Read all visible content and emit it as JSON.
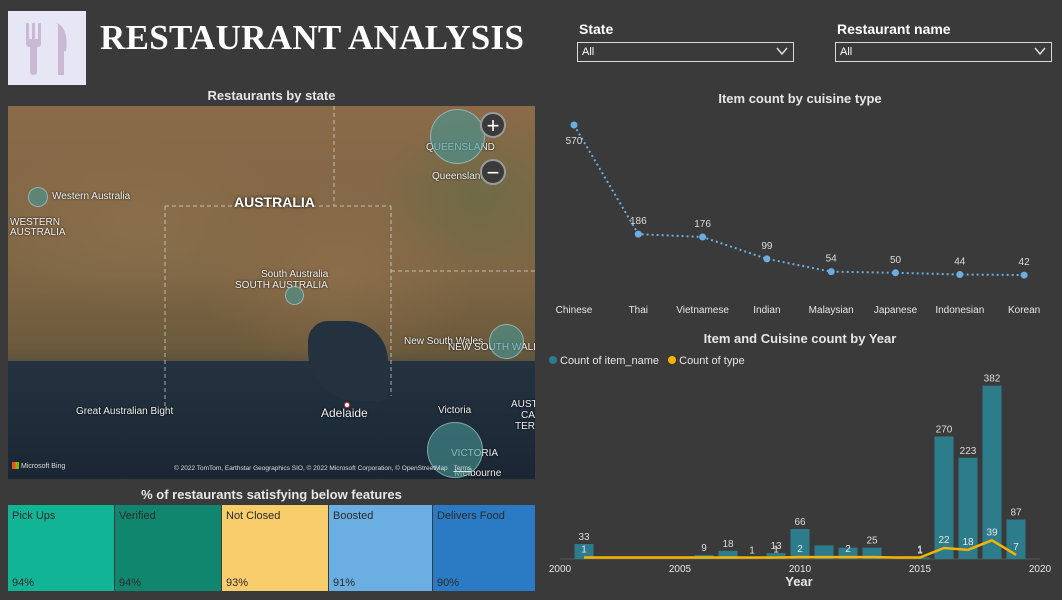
{
  "header": {
    "title": "RESTAURANT ANALYSIS",
    "logo_icon": "fork-knife-icon"
  },
  "filters": {
    "state": {
      "label": "State",
      "value": "All"
    },
    "restaurant": {
      "label": "Restaurant name",
      "value": "All"
    }
  },
  "map": {
    "title": "Restaurants by state",
    "country_label": "AUSTRALIA",
    "labels": {
      "western_australia": "Western Australia",
      "western_australia_caps": "WESTERN AUSTRALIA",
      "south_australia": "South Australia",
      "south_australia_caps": "SOUTH AUSTRALIA",
      "queensland": "Queensland",
      "queensland_caps": "QUEENSLAND",
      "nsw": "New South Wales",
      "nsw_caps": "NEW SOUTH WALES",
      "victoria": "Victoria",
      "victoria_caps": "VICTORIA",
      "adelaide": "Adelaide",
      "bight": "Great Australian Bight",
      "aust_fragment": "AUST",
      "ca_fragment": "CA",
      "ter_fragment": "TERI",
      "melbourne_fragment": "Melbourne"
    },
    "zoom_in": "+",
    "zoom_out": "−",
    "attribution": "© 2022 TomTom, Earthstar Geographics SIO, © 2022 Microsoft Corporation, © OpenStreetMap",
    "terms": "Terms",
    "bing": "Microsoft Bing"
  },
  "features": {
    "title": "% of restaurants satisfying below features",
    "tiles": [
      {
        "label": "Pick Ups",
        "value": "94%",
        "color": "#12b496"
      },
      {
        "label": "Verified",
        "value": "94%",
        "color": "#11866f"
      },
      {
        "label": "Not Closed",
        "value": "93%",
        "color": "#f9cd6b"
      },
      {
        "label": "Boosted",
        "value": "91%",
        "color": "#6aaee2"
      },
      {
        "label": "Delivers Food",
        "value": "90%",
        "color": "#2a7bc3"
      }
    ]
  },
  "chart_data": [
    {
      "type": "line",
      "title": "Item count by cuisine type",
      "categories": [
        "Chinese",
        "Thai",
        "Vietnamese",
        "Indian",
        "Malaysian",
        "Japanese",
        "Indonesian",
        "Korean"
      ],
      "values": [
        570,
        186,
        176,
        99,
        54,
        50,
        44,
        42
      ],
      "color": "#6aaee2",
      "line_style": "dotted"
    },
    {
      "type": "bar",
      "title": "Item and Cuisine count by Year",
      "xlabel": "Year",
      "x_ticks": [
        2000,
        2005,
        2010,
        2015,
        2020
      ],
      "xlim": [
        2000,
        2020
      ],
      "legend_position": "top-left",
      "series": [
        {
          "name": "Count of item_name",
          "type": "bar",
          "color": "#2d7c8c",
          "points": [
            [
              2001,
              33
            ],
            [
              2006,
              9
            ],
            [
              2007,
              18
            ],
            [
              2008,
              1
            ],
            [
              2009,
              13
            ],
            [
              2010,
              66
            ],
            [
              2011,
              30
            ],
            [
              2012,
              25
            ],
            [
              2013,
              25
            ],
            [
              2015,
              1
            ],
            [
              2016,
              270
            ],
            [
              2017,
              223
            ],
            [
              2018,
              382
            ],
            [
              2019,
              87
            ]
          ],
          "labels": {
            "2001": "33",
            "2006": "9",
            "2007": "18",
            "2008": "1",
            "2009": "13",
            "2010": "66",
            "2013": "25",
            "2015": "1",
            "2016": "270",
            "2017": "223",
            "2018": "382",
            "2019": "87"
          }
        },
        {
          "name": "Count of type",
          "type": "line",
          "color": "#f4b400",
          "points": [
            [
              2001,
              1
            ],
            [
              2002,
              1
            ],
            [
              2003,
              1
            ],
            [
              2004,
              1
            ],
            [
              2005,
              1
            ],
            [
              2006,
              1
            ],
            [
              2007,
              1
            ],
            [
              2008,
              1
            ],
            [
              2009,
              1
            ],
            [
              2010,
              2
            ],
            [
              2011,
              2
            ],
            [
              2012,
              2
            ],
            [
              2013,
              2
            ],
            [
              2014,
              1
            ],
            [
              2015,
              1
            ],
            [
              2016,
              22
            ],
            [
              2017,
              18
            ],
            [
              2018,
              39
            ],
            [
              2019,
              7
            ]
          ],
          "labels": {
            "2001": "1",
            "2009": "1",
            "2010": "2",
            "2012": "2",
            "2015": "1",
            "2016": "22",
            "2017": "18",
            "2018": "39",
            "2019": "7"
          }
        }
      ]
    }
  ]
}
